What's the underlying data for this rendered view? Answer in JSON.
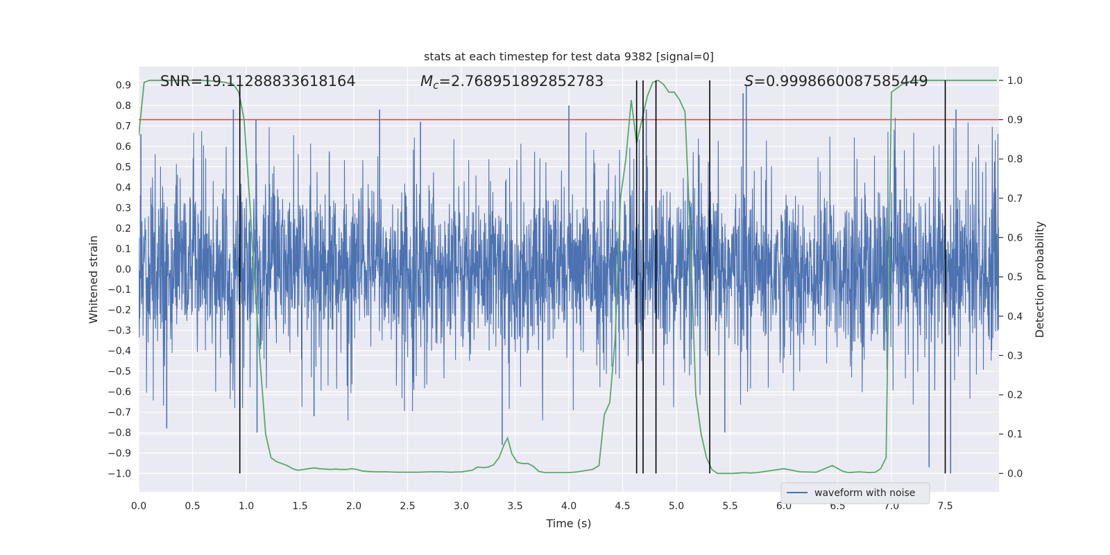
{
  "chart_data": {
    "type": "line",
    "title": "stats at each timestep for test data 9382 [signal=0]",
    "xlabel": "Time (s)",
    "ylabel_left": "Whitened strain",
    "ylabel_right": "Detection probability",
    "xlim": [
      0.0,
      8.0
    ],
    "ylim_left": [
      -1.09,
      0.99
    ],
    "ylim_right": [
      -0.047,
      1.035
    ],
    "x_ticks": [
      "0.0",
      "0.5",
      "1.0",
      "1.5",
      "2.0",
      "2.5",
      "3.0",
      "3.5",
      "4.0",
      "4.5",
      "5.0",
      "5.5",
      "6.0",
      "6.5",
      "7.0",
      "7.5"
    ],
    "y_ticks_left": [
      "0.9",
      "0.8",
      "0.7",
      "0.6",
      "0.5",
      "0.4",
      "0.3",
      "0.2",
      "0.1",
      "0.0",
      "−0.1",
      "−0.2",
      "−0.3",
      "−0.4",
      "−0.5",
      "−0.6",
      "−0.7",
      "−0.8",
      "−0.9",
      "−1.0"
    ],
    "y_ticks_right": [
      "1.0",
      "0.9",
      "0.8",
      "0.7",
      "0.6",
      "0.5",
      "0.4",
      "0.3",
      "0.2",
      "0.1",
      "0.0"
    ],
    "annotations": {
      "snr": "SNR=19.11288833618164",
      "mc_symbol": "M",
      "mc_sub": "c",
      "mc_value": "=2.768951892852783",
      "s_symbol": "S",
      "s_value": "=0.9998660087585449"
    },
    "threshold": {
      "value": 0.9,
      "axis": "right",
      "color": "#c44e52"
    },
    "event_lines_x": [
      0.94,
      4.63,
      4.69,
      4.81,
      5.31,
      7.5
    ],
    "legend": {
      "label": "waveform with noise",
      "position": "lower-right"
    },
    "series": [
      {
        "name": "waveform with noise",
        "axis": "left",
        "color": "#4c72b0",
        "sample_rate_hz": 2048,
        "envelope_hint": "dense noise, typical amplitude about ±0.45 with spikes reaching about ±0.9",
        "peak_spikes": [
          {
            "x": 0.02,
            "y": 0.66
          },
          {
            "x": 0.88,
            "y": 0.78
          },
          {
            "x": 1.09,
            "y": 0.73
          },
          {
            "x": 1.1,
            "y": -0.8
          },
          {
            "x": 1.63,
            "y": -0.72
          },
          {
            "x": 2.24,
            "y": 0.78
          },
          {
            "x": 2.62,
            "y": 0.72
          },
          {
            "x": 3.38,
            "y": -0.86
          },
          {
            "x": 4.0,
            "y": 0.8
          },
          {
            "x": 4.72,
            "y": 0.78
          },
          {
            "x": 5.62,
            "y": 0.86
          },
          {
            "x": 5.65,
            "y": 0.9
          },
          {
            "x": 5.45,
            "y": -0.8
          },
          {
            "x": 7.35,
            "y": -0.97
          },
          {
            "x": 7.55,
            "y": -1.0
          },
          {
            "x": 7.6,
            "y": 0.78
          },
          {
            "x": 0.26,
            "y": -0.78
          }
        ]
      },
      {
        "name": "detection probability",
        "axis": "right",
        "color": "#55a868",
        "x": [
          0.0,
          0.05,
          0.1,
          0.2,
          0.3,
          0.4,
          0.5,
          0.6,
          0.7,
          0.8,
          0.88,
          0.93,
          0.98,
          1.03,
          1.08,
          1.13,
          1.18,
          1.23,
          1.28,
          1.33,
          1.38,
          1.43,
          1.48,
          1.53,
          1.58,
          1.63,
          1.68,
          1.73,
          1.78,
          1.83,
          1.88,
          1.93,
          1.98,
          2.03,
          2.08,
          2.13,
          2.2,
          2.3,
          2.4,
          2.5,
          2.6,
          2.7,
          2.8,
          2.9,
          3.0,
          3.1,
          3.15,
          3.2,
          3.25,
          3.3,
          3.35,
          3.4,
          3.43,
          3.47,
          3.52,
          3.57,
          3.62,
          3.67,
          3.72,
          3.78,
          3.85,
          3.92,
          4.0,
          4.08,
          4.15,
          4.22,
          4.28,
          4.33,
          4.38,
          4.43,
          4.48,
          4.53,
          4.58,
          4.63,
          4.68,
          4.73,
          4.78,
          4.83,
          4.88,
          4.93,
          4.98,
          5.03,
          5.08,
          5.13,
          5.18,
          5.23,
          5.28,
          5.33,
          5.38,
          5.43,
          5.48,
          5.53,
          5.58,
          5.63,
          5.68,
          5.75,
          5.85,
          6.0,
          6.15,
          6.3,
          6.45,
          6.55,
          6.6,
          6.65,
          6.7,
          6.8,
          6.85,
          6.9,
          6.95,
          7.0,
          7.1,
          7.2,
          7.3,
          7.35,
          7.4,
          7.45,
          7.5,
          7.55,
          7.6,
          7.65,
          7.7,
          7.8,
          7.9,
          7.98
        ],
        "y": [
          0.86,
          0.995,
          1.0,
          1.0,
          1.0,
          1.0,
          1.0,
          1.0,
          0.998,
          0.995,
          0.99,
          0.97,
          0.9,
          0.7,
          0.48,
          0.28,
          0.1,
          0.04,
          0.03,
          0.025,
          0.02,
          0.012,
          0.008,
          0.01,
          0.012,
          0.014,
          0.012,
          0.011,
          0.01,
          0.011,
          0.01,
          0.01,
          0.012,
          0.01,
          0.006,
          0.005,
          0.004,
          0.004,
          0.003,
          0.003,
          0.003,
          0.004,
          0.004,
          0.003,
          0.004,
          0.008,
          0.016,
          0.015,
          0.016,
          0.022,
          0.04,
          0.075,
          0.09,
          0.05,
          0.028,
          0.025,
          0.025,
          0.018,
          0.005,
          0.002,
          0.002,
          0.002,
          0.002,
          0.004,
          0.007,
          0.01,
          0.02,
          0.15,
          0.18,
          0.34,
          0.7,
          0.8,
          0.95,
          0.84,
          0.9,
          0.96,
          0.995,
          1.0,
          0.99,
          0.97,
          0.97,
          0.95,
          0.92,
          0.6,
          0.2,
          0.1,
          0.04,
          0.01,
          0.0,
          0.0,
          0.0,
          0.0,
          0.001,
          0.002,
          0.001,
          0.002,
          0.006,
          0.012,
          0.004,
          0.003,
          0.02,
          0.005,
          0.002,
          0.003,
          0.004,
          0.002,
          0.003,
          0.012,
          0.04,
          0.97,
          0.99,
          1.0,
          1.0,
          1.0,
          1.0,
          1.0,
          1.0,
          1.0,
          1.0,
          1.0,
          1.0,
          1.0,
          1.0,
          1.0
        ]
      }
    ]
  }
}
